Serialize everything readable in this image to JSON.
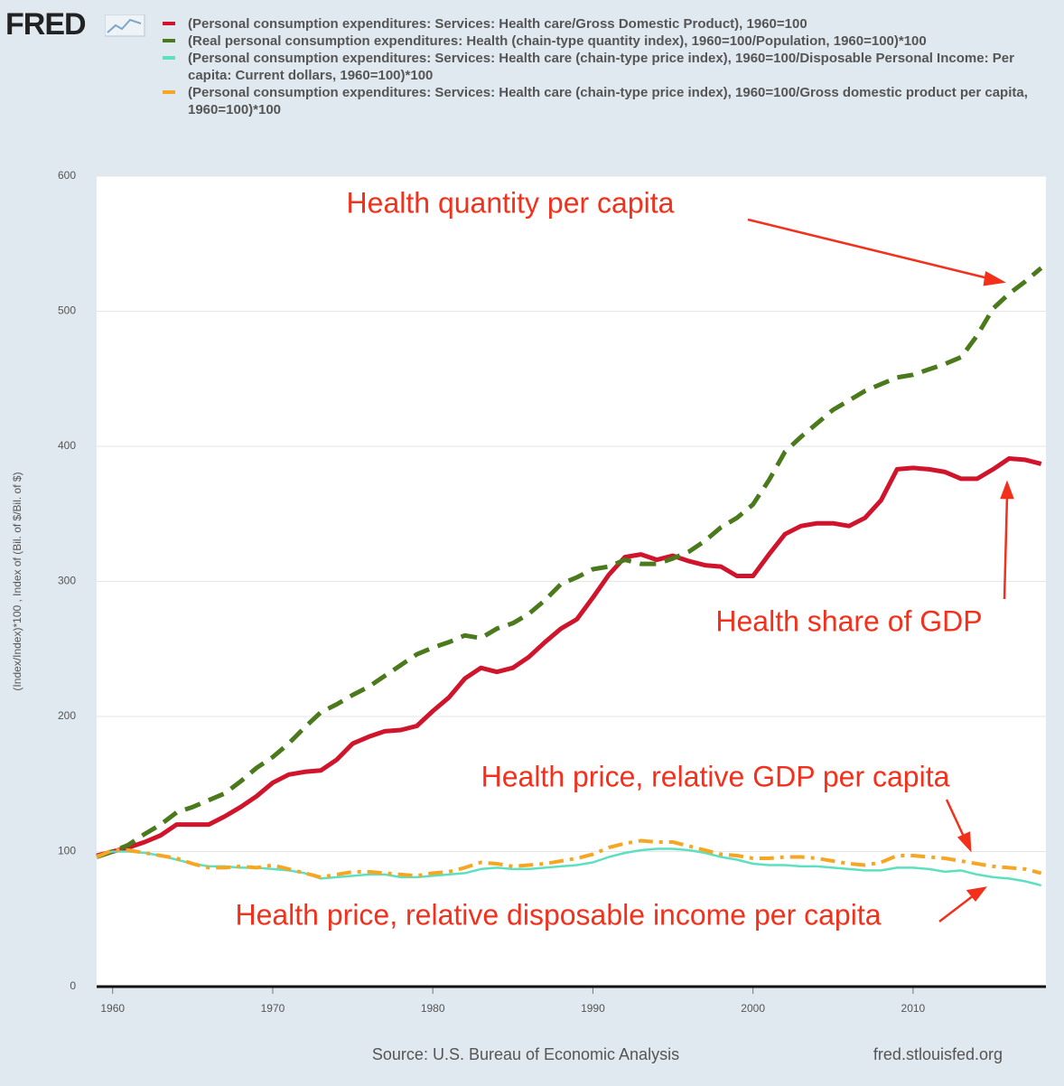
{
  "logo": "FRED",
  "chart_data": {
    "type": "line",
    "x": [
      1959,
      1960,
      1961,
      1962,
      1963,
      1964,
      1965,
      1966,
      1967,
      1968,
      1969,
      1970,
      1971,
      1972,
      1973,
      1974,
      1975,
      1976,
      1977,
      1978,
      1979,
      1980,
      1981,
      1982,
      1983,
      1984,
      1985,
      1986,
      1987,
      1988,
      1989,
      1990,
      1991,
      1992,
      1993,
      1994,
      1995,
      1996,
      1997,
      1998,
      1999,
      2000,
      2001,
      2002,
      2003,
      2004,
      2005,
      2006,
      2007,
      2008,
      2009,
      2010,
      2011,
      2012,
      2013,
      2014,
      2015,
      2016,
      2017,
      2018
    ],
    "series": [
      {
        "name": "(Personal consumption expenditures: Services: Health care/Gross Domestic Product), 1960=100",
        "color": "#d0142c",
        "style": "solid",
        "values": [
          97,
          100,
          103,
          107,
          112,
          120,
          120,
          120,
          126,
          133,
          141,
          151,
          157,
          159,
          160,
          168,
          180,
          185,
          189,
          190,
          193,
          204,
          214,
          228,
          236,
          233,
          236,
          244,
          255,
          265,
          272,
          288,
          305,
          318,
          320,
          316,
          319,
          315,
          312,
          311,
          304,
          304,
          320,
          335,
          341,
          343,
          343,
          341,
          347,
          360,
          383,
          384,
          383,
          381,
          376,
          376,
          383,
          391,
          390,
          387
        ]
      },
      {
        "name": "(Real personal consumption expenditures: Health (chain-type quantity index), 1960=100/Population, 1960=100)*100",
        "color": "#4b7a1d",
        "style": "dash",
        "values": [
          96,
          100,
          105,
          113,
          120,
          129,
          133,
          138,
          143,
          152,
          162,
          170,
          180,
          192,
          203,
          209,
          216,
          222,
          230,
          238,
          246,
          251,
          255,
          260,
          258,
          265,
          269,
          276,
          286,
          298,
          303,
          309,
          311,
          316,
          313,
          313,
          317,
          322,
          330,
          340,
          347,
          357,
          375,
          396,
          407,
          417,
          427,
          434,
          441,
          446,
          451,
          453,
          457,
          461,
          466,
          482,
          502,
          513,
          522,
          532
        ]
      },
      {
        "name": "(Personal consumption expenditures: Services: Health care (chain-type price index), 1960=100/Disposable Personal Income: Per capita: Current dollars, 1960=100)*100",
        "color": "#5ce0c0",
        "style": "thin",
        "values": [
          97,
          100,
          100,
          99,
          97,
          94,
          91,
          89,
          89,
          88,
          88,
          87,
          86,
          84,
          80,
          81,
          82,
          83,
          83,
          81,
          81,
          82,
          83,
          84,
          87,
          88,
          87,
          87,
          88,
          89,
          90,
          92,
          96,
          99,
          101,
          102,
          102,
          101,
          99,
          96,
          94,
          91,
          90,
          90,
          89,
          89,
          88,
          87,
          86,
          86,
          88,
          88,
          87,
          85,
          86,
          83,
          81,
          80,
          78,
          75
        ]
      },
      {
        "name": "(Personal consumption expenditures: Services: Health care (chain-type price index), 1960=100/Gross domestic product per capita, 1960=100)*100",
        "color": "#f5a623",
        "style": "dashdot",
        "values": [
          96,
          101,
          101,
          99,
          97,
          95,
          91,
          88,
          88,
          89,
          88,
          90,
          87,
          84,
          81,
          83,
          85,
          85,
          84,
          83,
          82,
          84,
          85,
          88,
          92,
          91,
          89,
          90,
          91,
          93,
          95,
          98,
          103,
          106,
          108,
          107,
          107,
          104,
          101,
          98,
          97,
          95,
          95,
          96,
          96,
          95,
          93,
          91,
          90,
          92,
          97,
          97,
          96,
          95,
          93,
          91,
          89,
          88,
          87,
          84
        ]
      }
    ],
    "y_label": "(Index/Index)*100 , Index of (Bil. of $/Bil. of $)",
    "xlim": [
      1959,
      2018.3
    ],
    "xticks": [
      1960,
      1970,
      1980,
      1990,
      2000,
      2010
    ],
    "ylim": [
      0,
      600
    ],
    "yticks": [
      0,
      100,
      200,
      300,
      400,
      500,
      600
    ],
    "grid": true,
    "annotations": [
      "Health quantity per capita",
      "Health share of GDP",
      "Health price, relative GDP per capita",
      "Health price, relative disposable income per capita"
    ],
    "source": "Source: U.S. Bureau of Economic Analysis",
    "site": "fred.stlouisfed.org"
  }
}
